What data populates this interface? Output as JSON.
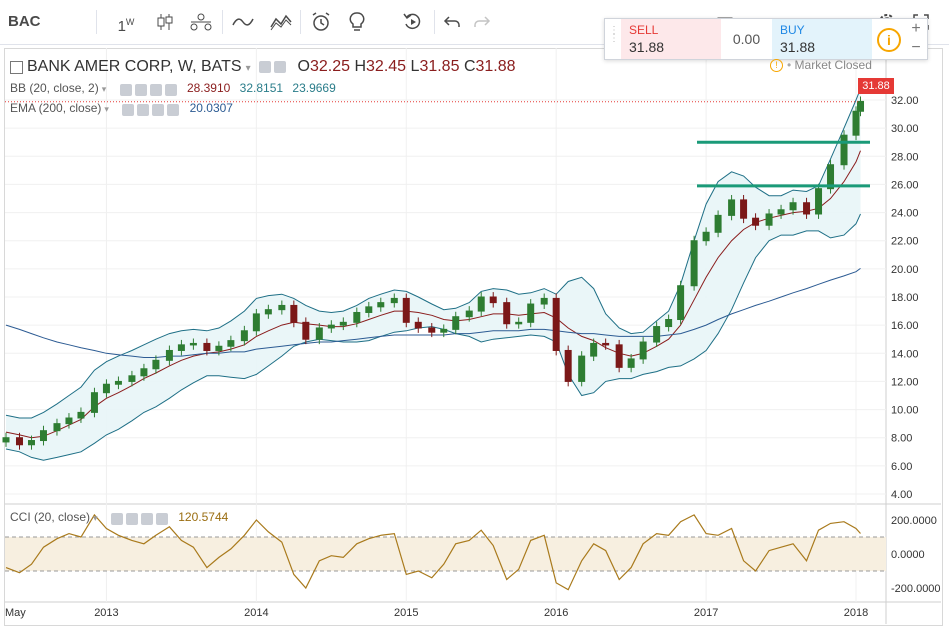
{
  "toolbar": {
    "symbol": "BAC",
    "interval": "1",
    "interval_sup": "W"
  },
  "legend": {
    "title": "BANK AMER CORP, W, BATS",
    "o_label": "O",
    "o_value": "32.25",
    "h_label": "H",
    "h_value": "32.45",
    "l_label": "L",
    "l_value": "31.85",
    "c_label": "C",
    "c_value": "31.88",
    "bb_label": "BB (20, close, 2)",
    "bb_mid": "28.3910",
    "bb_upper": "32.8151",
    "bb_lower": "23.9669",
    "ema_label": "EMA (200, close)",
    "ema_value": "20.0307",
    "cci_label": "CCI (20, close)",
    "cci_value": "120.5744"
  },
  "trade": {
    "sell_label": "SELL",
    "sell_price": "31.88",
    "spread": "0.00",
    "buy_label": "BUY",
    "buy_price": "31.88",
    "info": "i",
    "plus": "+",
    "minus": "−"
  },
  "market_status": "Market Closed",
  "last_price_tag": "31.88",
  "colors": {
    "candle_up": "#2e7d32",
    "candle_down": "#7b1818",
    "bb_band": "#1e6f86",
    "bb_mid": "#8a1d1d",
    "ema": "#2c5b93",
    "cci": "#a97a1c",
    "support": "#1a9a78"
  },
  "chart_data": {
    "type": "line",
    "price_axis": {
      "ticks": [
        "32.00",
        "30.00",
        "28.00",
        "26.00",
        "24.00",
        "22.00",
        "20.00",
        "18.00",
        "16.00",
        "14.00",
        "12.00",
        "10.00",
        "8.00",
        "6.00",
        "4.00"
      ],
      "ylim": [
        4,
        33
      ]
    },
    "time_axis": {
      "labels": [
        "May",
        "2013",
        "2014",
        "2015",
        "2016",
        "2017",
        "2018"
      ]
    },
    "horizontal_lines": [
      29.0,
      25.9
    ],
    "cci_axis": {
      "ticks": [
        "200.0000",
        "0.0000",
        "-200.0000"
      ],
      "ylim": [
        -230,
        230
      ],
      "band": [
        -100,
        100
      ]
    },
    "series": [
      {
        "x": [
          2012.33,
          2012.42,
          2012.5,
          2012.58,
          2012.67,
          2012.75,
          2012.83,
          2012.92,
          2013.0,
          2013.08,
          2013.17,
          2013.25,
          2013.33,
          2013.42,
          2013.5,
          2013.58,
          2013.67,
          2013.75,
          2013.83,
          2013.92,
          2014.0,
          2014.08,
          2014.17,
          2014.25,
          2014.33,
          2014.42,
          2014.5,
          2014.58,
          2014.67,
          2014.75,
          2014.83,
          2014.92,
          2015.0,
          2015.08,
          2015.17,
          2015.25,
          2015.33,
          2015.42,
          2015.5,
          2015.58,
          2015.67,
          2015.75,
          2015.83,
          2015.92,
          2016.0,
          2016.08,
          2016.17,
          2016.25,
          2016.33,
          2016.42,
          2016.5,
          2016.58,
          2016.67,
          2016.75,
          2016.83,
          2016.92,
          2017.0,
          2017.08,
          2017.17,
          2017.25,
          2017.33,
          2017.42,
          2017.5,
          2017.58,
          2017.67,
          2017.75,
          2017.83,
          2017.92,
          2018.0,
          2018.03
        ],
        "values": [
          8.0,
          7.5,
          7.8,
          8.5,
          9.0,
          9.4,
          9.8,
          11.2,
          11.8,
          12.0,
          12.4,
          12.9,
          13.5,
          14.2,
          14.6,
          14.7,
          14.2,
          14.5,
          14.9,
          15.6,
          16.8,
          17.1,
          17.4,
          16.2,
          15.0,
          15.8,
          16.0,
          16.2,
          16.9,
          17.3,
          17.6,
          17.9,
          16.2,
          15.8,
          15.5,
          15.7,
          16.6,
          17.0,
          18.0,
          17.6,
          16.1,
          16.2,
          17.5,
          17.9,
          14.2,
          12.0,
          13.8,
          14.7,
          14.6,
          13.0,
          13.6,
          14.8,
          15.9,
          16.4,
          18.8,
          22.0,
          22.6,
          23.8,
          24.9,
          23.6,
          23.1,
          23.9,
          24.2,
          24.7,
          23.9,
          25.7,
          27.4,
          29.5,
          31.2,
          31.9
        ],
        "bb_upper": [
          9.6,
          9.4,
          9.4,
          9.8,
          10.4,
          11.0,
          11.6,
          12.8,
          13.4,
          13.8,
          14.2,
          14.6,
          15.0,
          15.4,
          15.6,
          15.7,
          15.6,
          15.8,
          16.3,
          17.0,
          17.9,
          18.1,
          18.2,
          17.9,
          17.4,
          17.0,
          16.9,
          17.0,
          17.4,
          17.9,
          18.2,
          18.5,
          18.4,
          18.0,
          17.5,
          17.1,
          17.2,
          17.6,
          18.4,
          18.6,
          18.5,
          18.2,
          18.3,
          18.6,
          18.2,
          19.1,
          19.4,
          18.6,
          16.8,
          15.8,
          15.4,
          15.5,
          16.3,
          17.0,
          18.9,
          22.0,
          24.6,
          26.2,
          26.9,
          26.6,
          25.8,
          25.2,
          25.2,
          25.6,
          25.5,
          25.9,
          27.8,
          30.0,
          32.0,
          32.8
        ],
        "bb_mid": [
          8.4,
          8.2,
          8.0,
          8.1,
          8.5,
          8.9,
          9.3,
          10.2,
          10.8,
          11.2,
          11.7,
          12.2,
          12.6,
          13.1,
          13.5,
          13.8,
          14.0,
          14.1,
          14.3,
          14.6,
          15.2,
          15.6,
          16.0,
          16.2,
          16.1,
          16.0,
          15.9,
          15.9,
          16.1,
          16.4,
          16.7,
          17.0,
          17.0,
          16.9,
          16.7,
          16.4,
          16.3,
          16.4,
          16.6,
          16.8,
          16.8,
          16.7,
          16.8,
          16.9,
          16.5,
          15.8,
          15.2,
          14.9,
          14.4,
          14.0,
          13.8,
          14.0,
          14.5,
          15.0,
          16.0,
          17.8,
          19.4,
          20.8,
          22.0,
          22.8,
          23.3,
          23.6,
          23.8,
          24.0,
          24.1,
          24.3,
          25.0,
          26.2,
          27.6,
          28.4
        ],
        "bb_lower": [
          7.2,
          7.0,
          6.6,
          6.4,
          6.6,
          6.8,
          7.0,
          7.6,
          8.2,
          8.6,
          9.2,
          9.8,
          10.2,
          10.8,
          11.4,
          11.9,
          12.4,
          12.4,
          12.3,
          12.2,
          12.5,
          13.1,
          13.8,
          14.5,
          14.8,
          15.0,
          14.9,
          14.8,
          14.8,
          14.9,
          15.2,
          15.5,
          15.6,
          15.8,
          15.9,
          15.7,
          15.4,
          15.2,
          14.8,
          15.0,
          15.1,
          15.2,
          15.3,
          15.2,
          14.8,
          12.5,
          11.0,
          11.2,
          12.0,
          12.2,
          12.2,
          12.5,
          12.7,
          13.0,
          13.1,
          13.6,
          14.2,
          15.4,
          17.1,
          19.0,
          20.8,
          22.0,
          22.4,
          22.4,
          22.7,
          22.7,
          22.2,
          22.4,
          23.2,
          23.9
        ],
        "ema": [
          16.0,
          15.7,
          15.4,
          15.1,
          14.8,
          14.6,
          14.4,
          14.2,
          14.0,
          13.9,
          13.8,
          13.7,
          13.7,
          13.8,
          13.8,
          13.9,
          14.0,
          14.0,
          14.1,
          14.1,
          14.3,
          14.4,
          14.5,
          14.6,
          14.7,
          14.8,
          14.8,
          14.9,
          15.0,
          15.1,
          15.2,
          15.3,
          15.3,
          15.3,
          15.3,
          15.3,
          15.4,
          15.4,
          15.5,
          15.6,
          15.6,
          15.6,
          15.7,
          15.7,
          15.6,
          15.5,
          15.4,
          15.4,
          15.3,
          15.2,
          15.2,
          15.2,
          15.2,
          15.3,
          15.4,
          15.7,
          16.0,
          16.4,
          16.8,
          17.1,
          17.4,
          17.7,
          18.0,
          18.3,
          18.6,
          18.9,
          19.2,
          19.5,
          19.8,
          20.03
        ],
        "cci": [
          -80,
          -110,
          -60,
          40,
          90,
          120,
          100,
          230,
          150,
          110,
          80,
          60,
          110,
          160,
          80,
          40,
          -80,
          -20,
          30,
          110,
          200,
          130,
          70,
          -120,
          -200,
          -40,
          -10,
          -20,
          60,
          90,
          110,
          120,
          -120,
          -100,
          -140,
          -60,
          60,
          80,
          140,
          50,
          -150,
          -90,
          80,
          110,
          -170,
          -210,
          -40,
          60,
          20,
          -150,
          -80,
          60,
          120,
          110,
          190,
          230,
          120,
          110,
          150,
          -40,
          -100,
          20,
          40,
          60,
          -40,
          140,
          180,
          190,
          150,
          120.57
        ]
      }
    ]
  }
}
